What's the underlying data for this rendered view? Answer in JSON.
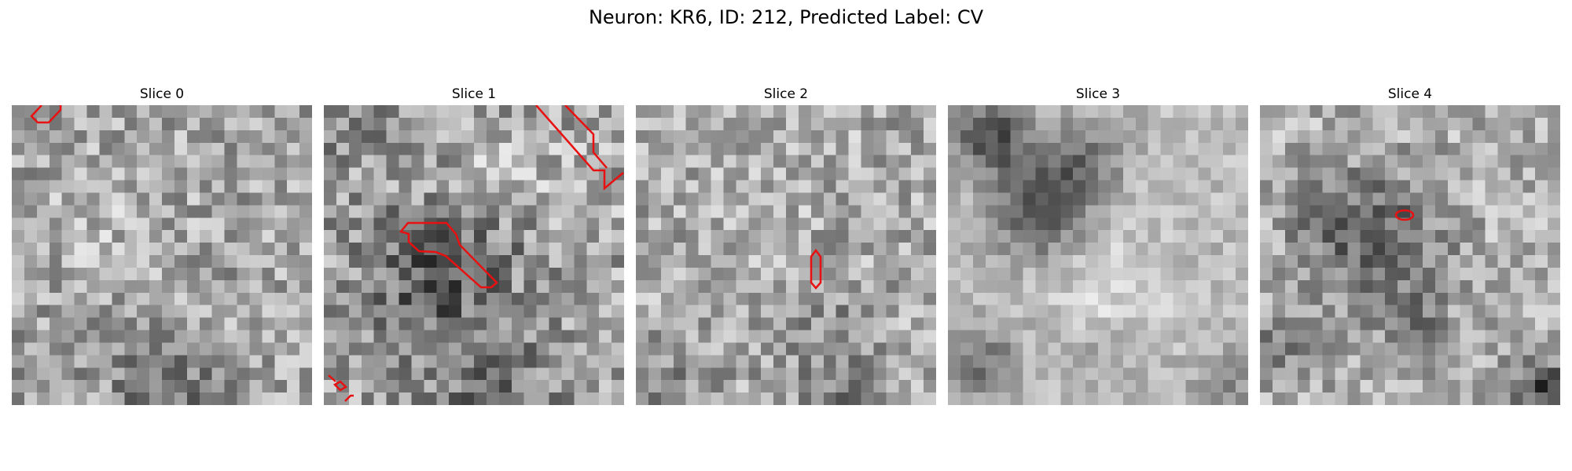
{
  "figure": {
    "title": "Neuron: KR6, ID: 212, Predicted Label: CV",
    "contour_color": "#e81010",
    "colormap": "grayscale",
    "panels": [
      {
        "title": "Slice 0"
      },
      {
        "title": "Slice 1"
      },
      {
        "title": "Slice 2"
      },
      {
        "title": "Slice 3"
      },
      {
        "title": "Slice 4"
      }
    ]
  }
}
